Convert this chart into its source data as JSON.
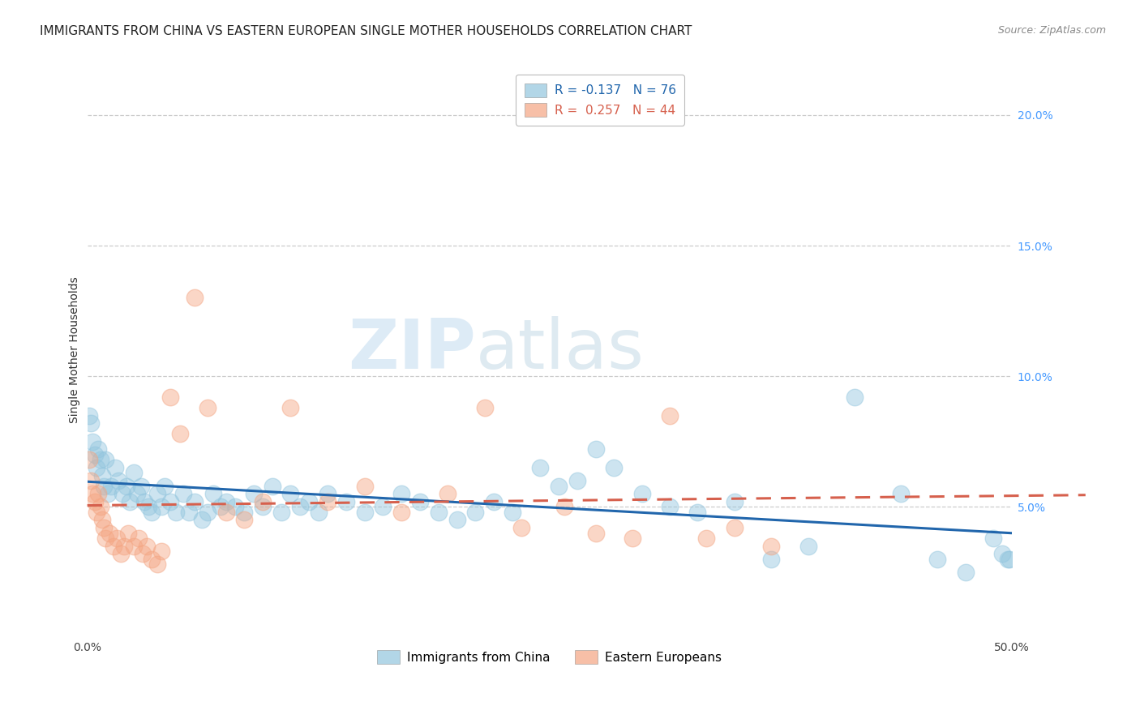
{
  "title": "IMMIGRANTS FROM CHINA VS EASTERN EUROPEAN SINGLE MOTHER HOUSEHOLDS CORRELATION CHART",
  "source": "Source: ZipAtlas.com",
  "ylabel": "Single Mother Households",
  "right_yticks": [
    "20.0%",
    "15.0%",
    "10.0%",
    "5.0%"
  ],
  "right_ytick_vals": [
    0.2,
    0.15,
    0.1,
    0.05
  ],
  "xlim": [
    0.0,
    0.5
  ],
  "ylim": [
    0.0,
    0.22
  ],
  "legend_label1": "Immigrants from China",
  "legend_label2": "Eastern Europeans",
  "blue_color": "#92c5de",
  "pink_color": "#f4a582",
  "blue_line_color": "#2166ac",
  "pink_line_color": "#d6604d",
  "watermark_zip": "ZIP",
  "watermark_atlas": "atlas",
  "title_fontsize": 11,
  "source_fontsize": 9,
  "blue_R": -0.137,
  "blue_N": 76,
  "pink_R": 0.257,
  "pink_N": 44,
  "blue_x": [
    0.001,
    0.002,
    0.003,
    0.004,
    0.005,
    0.006,
    0.007,
    0.008,
    0.009,
    0.01,
    0.011,
    0.013,
    0.015,
    0.017,
    0.019,
    0.021,
    0.023,
    0.025,
    0.027,
    0.029,
    0.031,
    0.033,
    0.035,
    0.038,
    0.04,
    0.042,
    0.045,
    0.048,
    0.052,
    0.055,
    0.058,
    0.062,
    0.065,
    0.068,
    0.072,
    0.075,
    0.08,
    0.085,
    0.09,
    0.095,
    0.1,
    0.105,
    0.11,
    0.115,
    0.12,
    0.125,
    0.13,
    0.14,
    0.15,
    0.16,
    0.17,
    0.18,
    0.19,
    0.2,
    0.21,
    0.22,
    0.23,
    0.245,
    0.255,
    0.265,
    0.275,
    0.285,
    0.3,
    0.315,
    0.33,
    0.35,
    0.37,
    0.39,
    0.415,
    0.44,
    0.46,
    0.475,
    0.49,
    0.495,
    0.498,
    0.499
  ],
  "blue_y": [
    0.085,
    0.082,
    0.075,
    0.07,
    0.065,
    0.072,
    0.068,
    0.062,
    0.058,
    0.068,
    0.055,
    0.058,
    0.065,
    0.06,
    0.055,
    0.058,
    0.052,
    0.063,
    0.055,
    0.058,
    0.052,
    0.05,
    0.048,
    0.055,
    0.05,
    0.058,
    0.052,
    0.048,
    0.055,
    0.048,
    0.052,
    0.045,
    0.048,
    0.055,
    0.05,
    0.052,
    0.05,
    0.048,
    0.055,
    0.05,
    0.058,
    0.048,
    0.055,
    0.05,
    0.052,
    0.048,
    0.055,
    0.052,
    0.048,
    0.05,
    0.055,
    0.052,
    0.048,
    0.045,
    0.048,
    0.052,
    0.048,
    0.065,
    0.058,
    0.06,
    0.072,
    0.065,
    0.055,
    0.05,
    0.048,
    0.052,
    0.03,
    0.035,
    0.092,
    0.055,
    0.03,
    0.025,
    0.038,
    0.032,
    0.03,
    0.03
  ],
  "pink_x": [
    0.001,
    0.002,
    0.003,
    0.004,
    0.005,
    0.006,
    0.007,
    0.008,
    0.009,
    0.01,
    0.012,
    0.014,
    0.016,
    0.018,
    0.02,
    0.022,
    0.025,
    0.028,
    0.03,
    0.032,
    0.035,
    0.038,
    0.04,
    0.045,
    0.05,
    0.058,
    0.065,
    0.075,
    0.085,
    0.095,
    0.11,
    0.13,
    0.15,
    0.17,
    0.195,
    0.215,
    0.235,
    0.258,
    0.275,
    0.295,
    0.315,
    0.335,
    0.35,
    0.37
  ],
  "pink_y": [
    0.068,
    0.06,
    0.055,
    0.052,
    0.048,
    0.055,
    0.05,
    0.045,
    0.042,
    0.038,
    0.04,
    0.035,
    0.038,
    0.032,
    0.035,
    0.04,
    0.035,
    0.038,
    0.032,
    0.035,
    0.03,
    0.028,
    0.033,
    0.092,
    0.078,
    0.13,
    0.088,
    0.048,
    0.045,
    0.052,
    0.088,
    0.052,
    0.058,
    0.048,
    0.055,
    0.088,
    0.042,
    0.05,
    0.04,
    0.038,
    0.085,
    0.038,
    0.042,
    0.035
  ]
}
